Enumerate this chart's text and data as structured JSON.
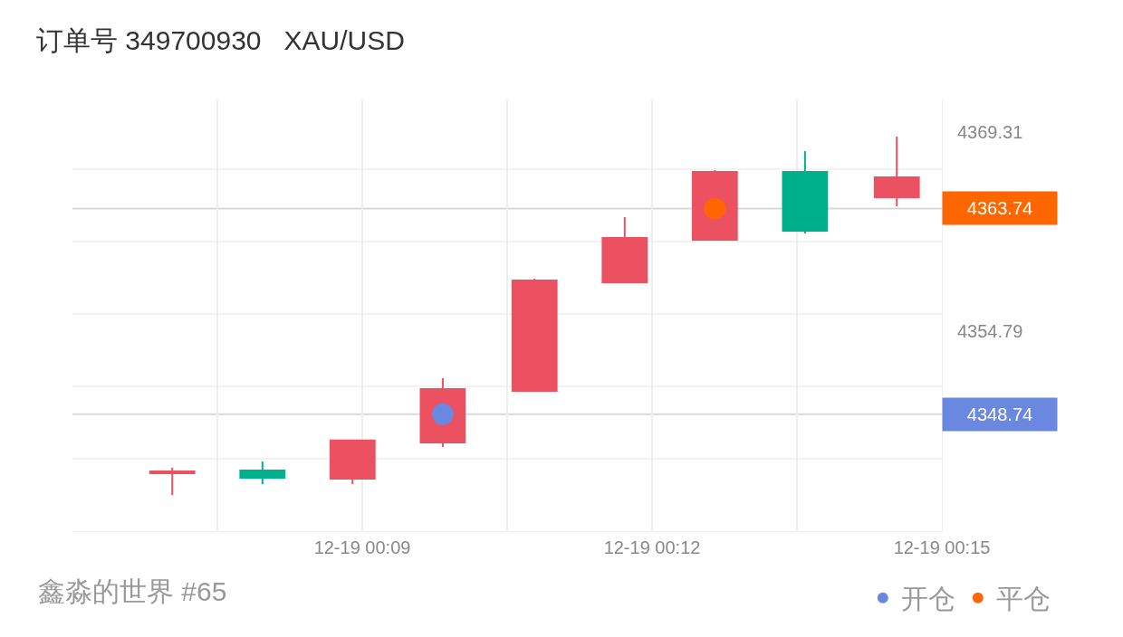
{
  "chart_data": {
    "type": "candlestick",
    "title": "订单号 349700930   XAU/USD",
    "annotations": [
      "鑫淼的世界 #65"
    ],
    "x": [
      "--12-19T00:07:02",
      "--12-19T00:07:58",
      "--12-19T00:08:54",
      "--12-19T00:09:50",
      "--12-19T00:10:47",
      "--12-19T00:11:43",
      "--12-19T00:12:39",
      "--12-19T00:13:35",
      "--12-19T00:14:32"
    ],
    "ohlc": [
      [
        4344.43,
        4344.82,
        4342.84,
        4344.56
      ],
      [
        4344.63,
        4345.29,
        4343.64,
        4344.1
      ],
      [
        4344.03,
        4346.81,
        4343.64,
        4346.81
      ],
      [
        4346.67,
        4351.36,
        4346.34,
        4350.57
      ],
      [
        4350.43,
        4358.62,
        4350.43,
        4358.49
      ],
      [
        4358.35,
        4363.11,
        4358.35,
        4361.59
      ],
      [
        4361.46,
        4366.54,
        4361.46,
        4366.41
      ],
      [
        4366.41,
        4367.92,
        4361.92,
        4362.12
      ],
      [
        4364.56,
        4368.98,
        4363.9,
        4366.01
      ]
    ],
    "colors": [
      "#eb5160",
      "#00b08c",
      "#eb5160",
      "#eb5160",
      "#eb5160",
      "#eb5160",
      "#eb5160",
      "#00b08c",
      "#eb5160"
    ],
    "series": [
      {
        "type": "scatter",
        "name": "开仓",
        "color": "#6b88e0",
        "x": [
          "--12-19T00:09:50"
        ],
        "values": [
          4348.74
        ]
      },
      {
        "type": "scatter",
        "name": "平仓",
        "color": "#ff6600",
        "x": [
          "--12-19T00:12:39"
        ],
        "values": [
          4363.74
        ]
      }
    ],
    "ref_lines": [
      {
        "axis": "y",
        "value": 4363.74,
        "label": "4363.74",
        "color": "#d9d9d9"
      },
      {
        "axis": "y",
        "value": 4348.74,
        "label": "4348.74",
        "color": "#d9d9d9"
      }
    ],
    "xlim": [
      "--12-19T00:06",
      "--12-19T00:15"
    ],
    "xticks": [
      {
        "value": "--12-19T00:07:30",
        "label": null
      },
      {
        "value": "--12-19T00:09",
        "label": "12-19 00:09"
      },
      {
        "value": "--12-19T00:10:30",
        "label": null
      },
      {
        "value": "--12-19T00:12",
        "label": "12-19 00:12"
      },
      {
        "value": "--12-19T00:13:30",
        "label": null
      },
      {
        "value": "--12-19T00:15",
        "label": "12-19 00:15"
      }
    ],
    "ylim": [
      4340.2,
      4371.69
    ],
    "yticks": [
      {
        "value": 4366.6,
        "label": null
      },
      {
        "value": 4361.32,
        "label": null
      },
      {
        "value": 4356.04,
        "label": null
      },
      {
        "value": 4350.76,
        "label": null
      },
      {
        "value": 4345.48,
        "label": null
      },
      {
        "value": 4369.31,
        "label": "4369.31"
      },
      {
        "value": 4354.79,
        "label": "4354.79"
      }
    ],
    "grid": true,
    "legend": "bottom right",
    "marker": "circle"
  }
}
